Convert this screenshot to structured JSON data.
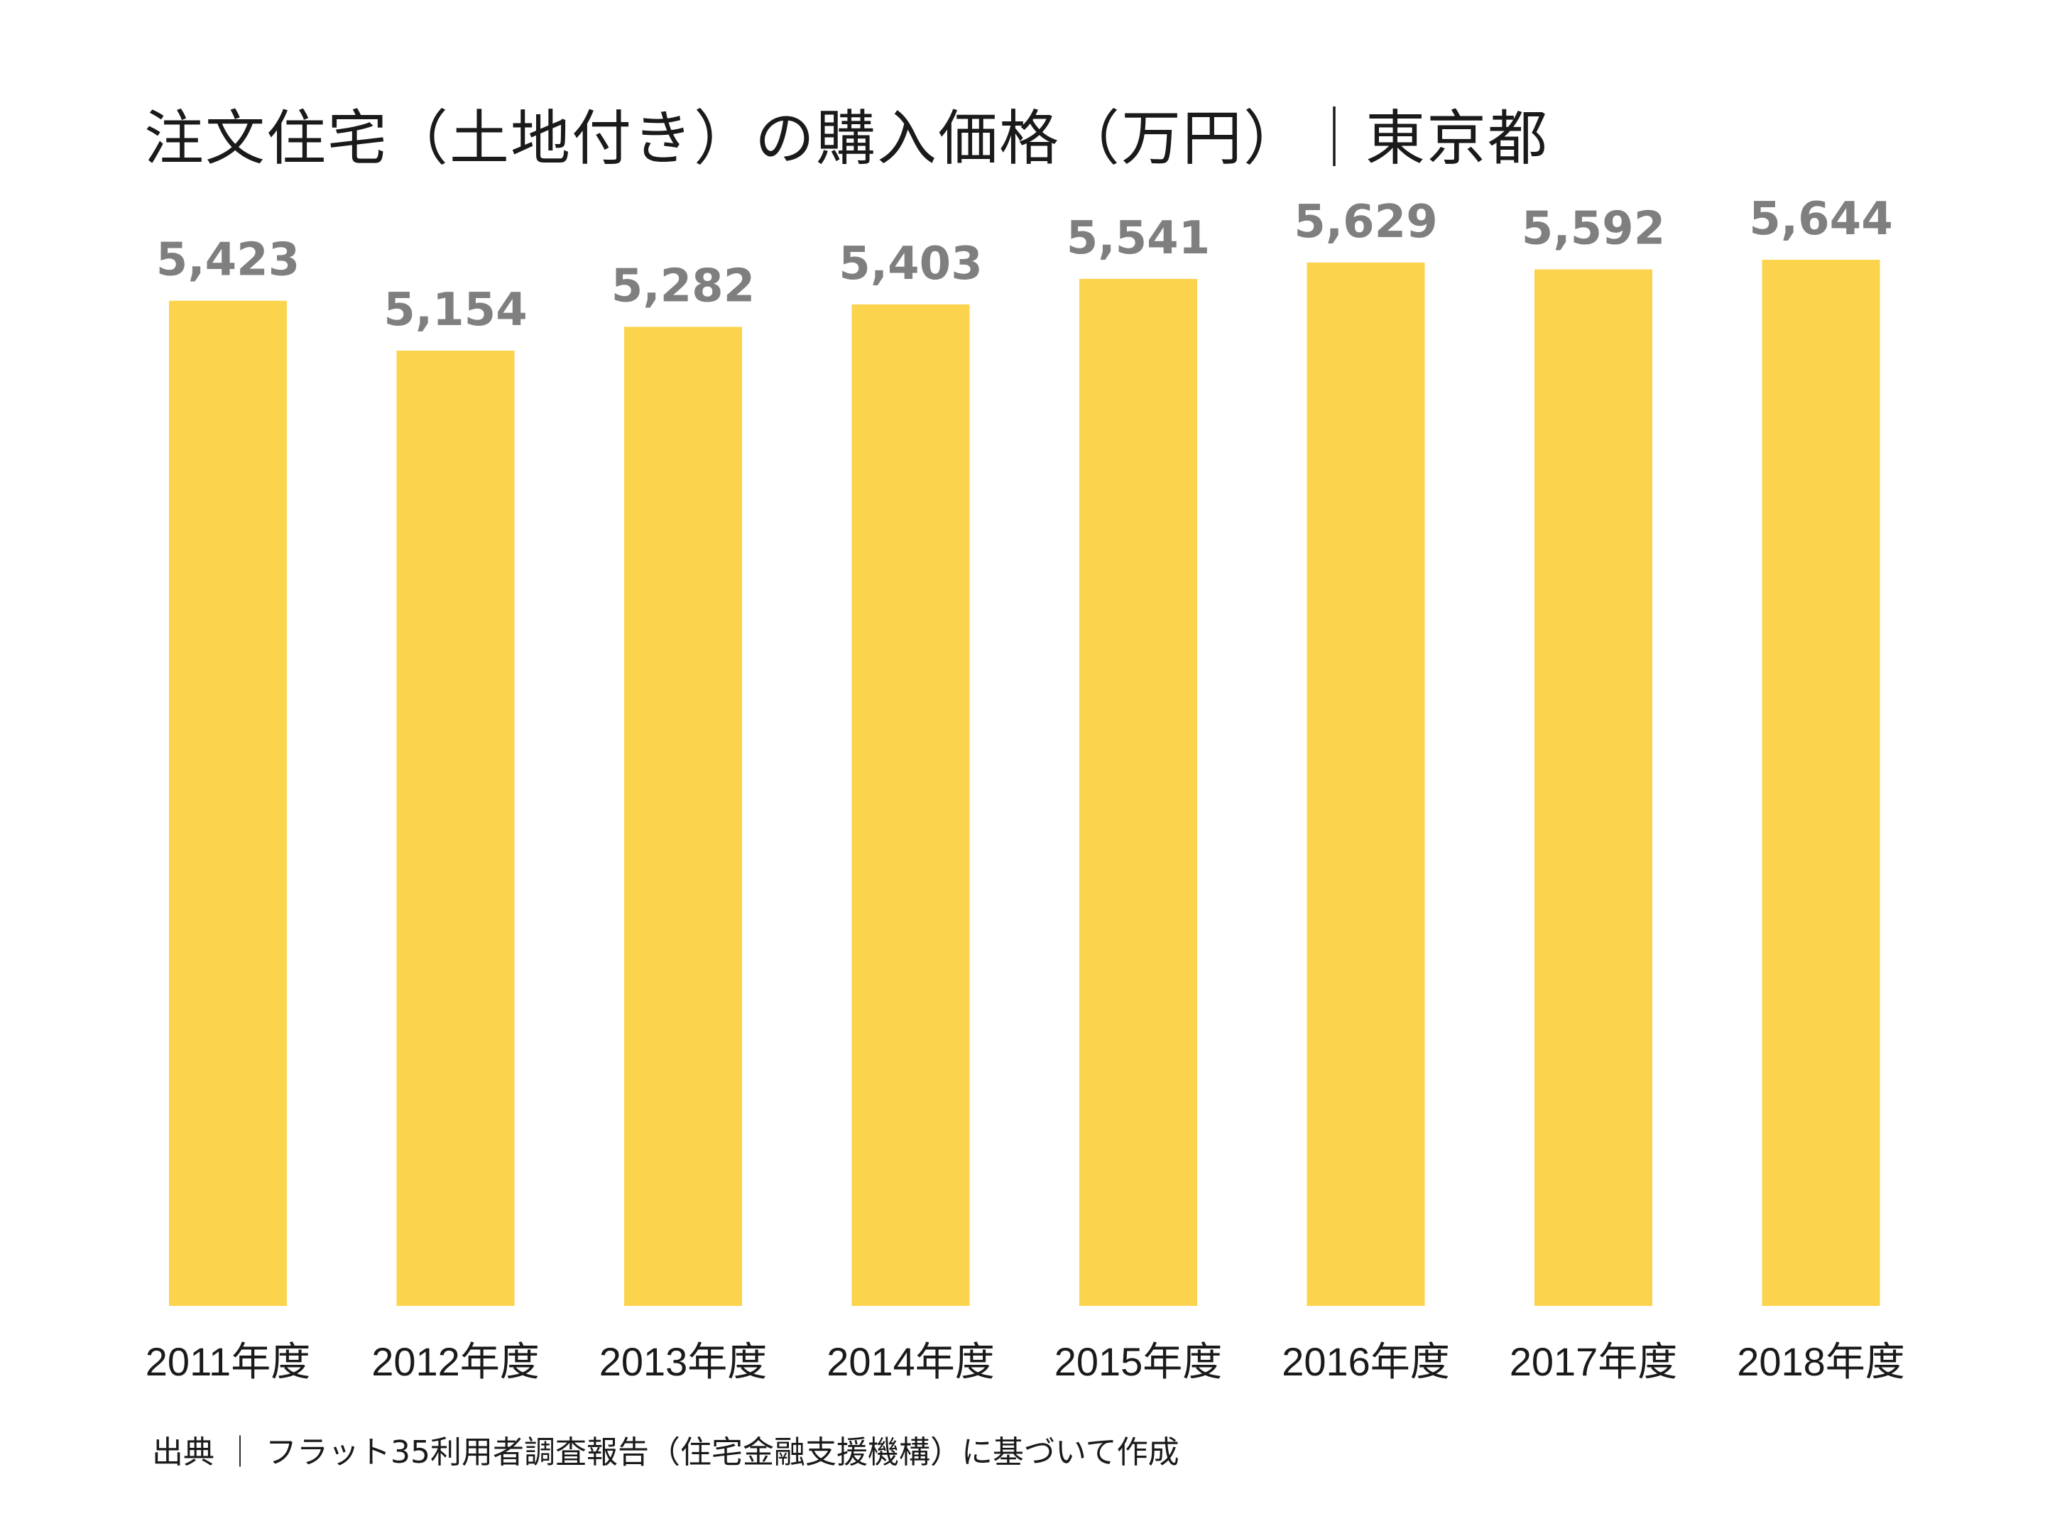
{
  "chart_data": {
    "type": "bar",
    "title": "注文住宅（土地付き）の購入価格（万円）｜東京都",
    "categories": [
      "2011年度",
      "2012年度",
      "2013年度",
      "2014年度",
      "2015年度",
      "2016年度",
      "2017年度",
      "2018年度"
    ],
    "values": [
      5423,
      5154,
      5282,
      5403,
      5541,
      5629,
      5592,
      5644
    ],
    "value_labels": [
      "5,423",
      "5,154",
      "5,282",
      "5,403",
      "5,541",
      "5,629",
      "5,592",
      "5,644"
    ],
    "xlabel": "",
    "ylabel": "",
    "ylim": [
      0,
      5644
    ],
    "grid": false,
    "legend": "none",
    "source": "出典 ｜ フラット35利用者調査報告（住宅金融支援機構）に基づいて作成"
  },
  "colors": {
    "bar": "#fcd34d",
    "value_label": "#7f7f7f",
    "text": "#1a1a1a"
  }
}
